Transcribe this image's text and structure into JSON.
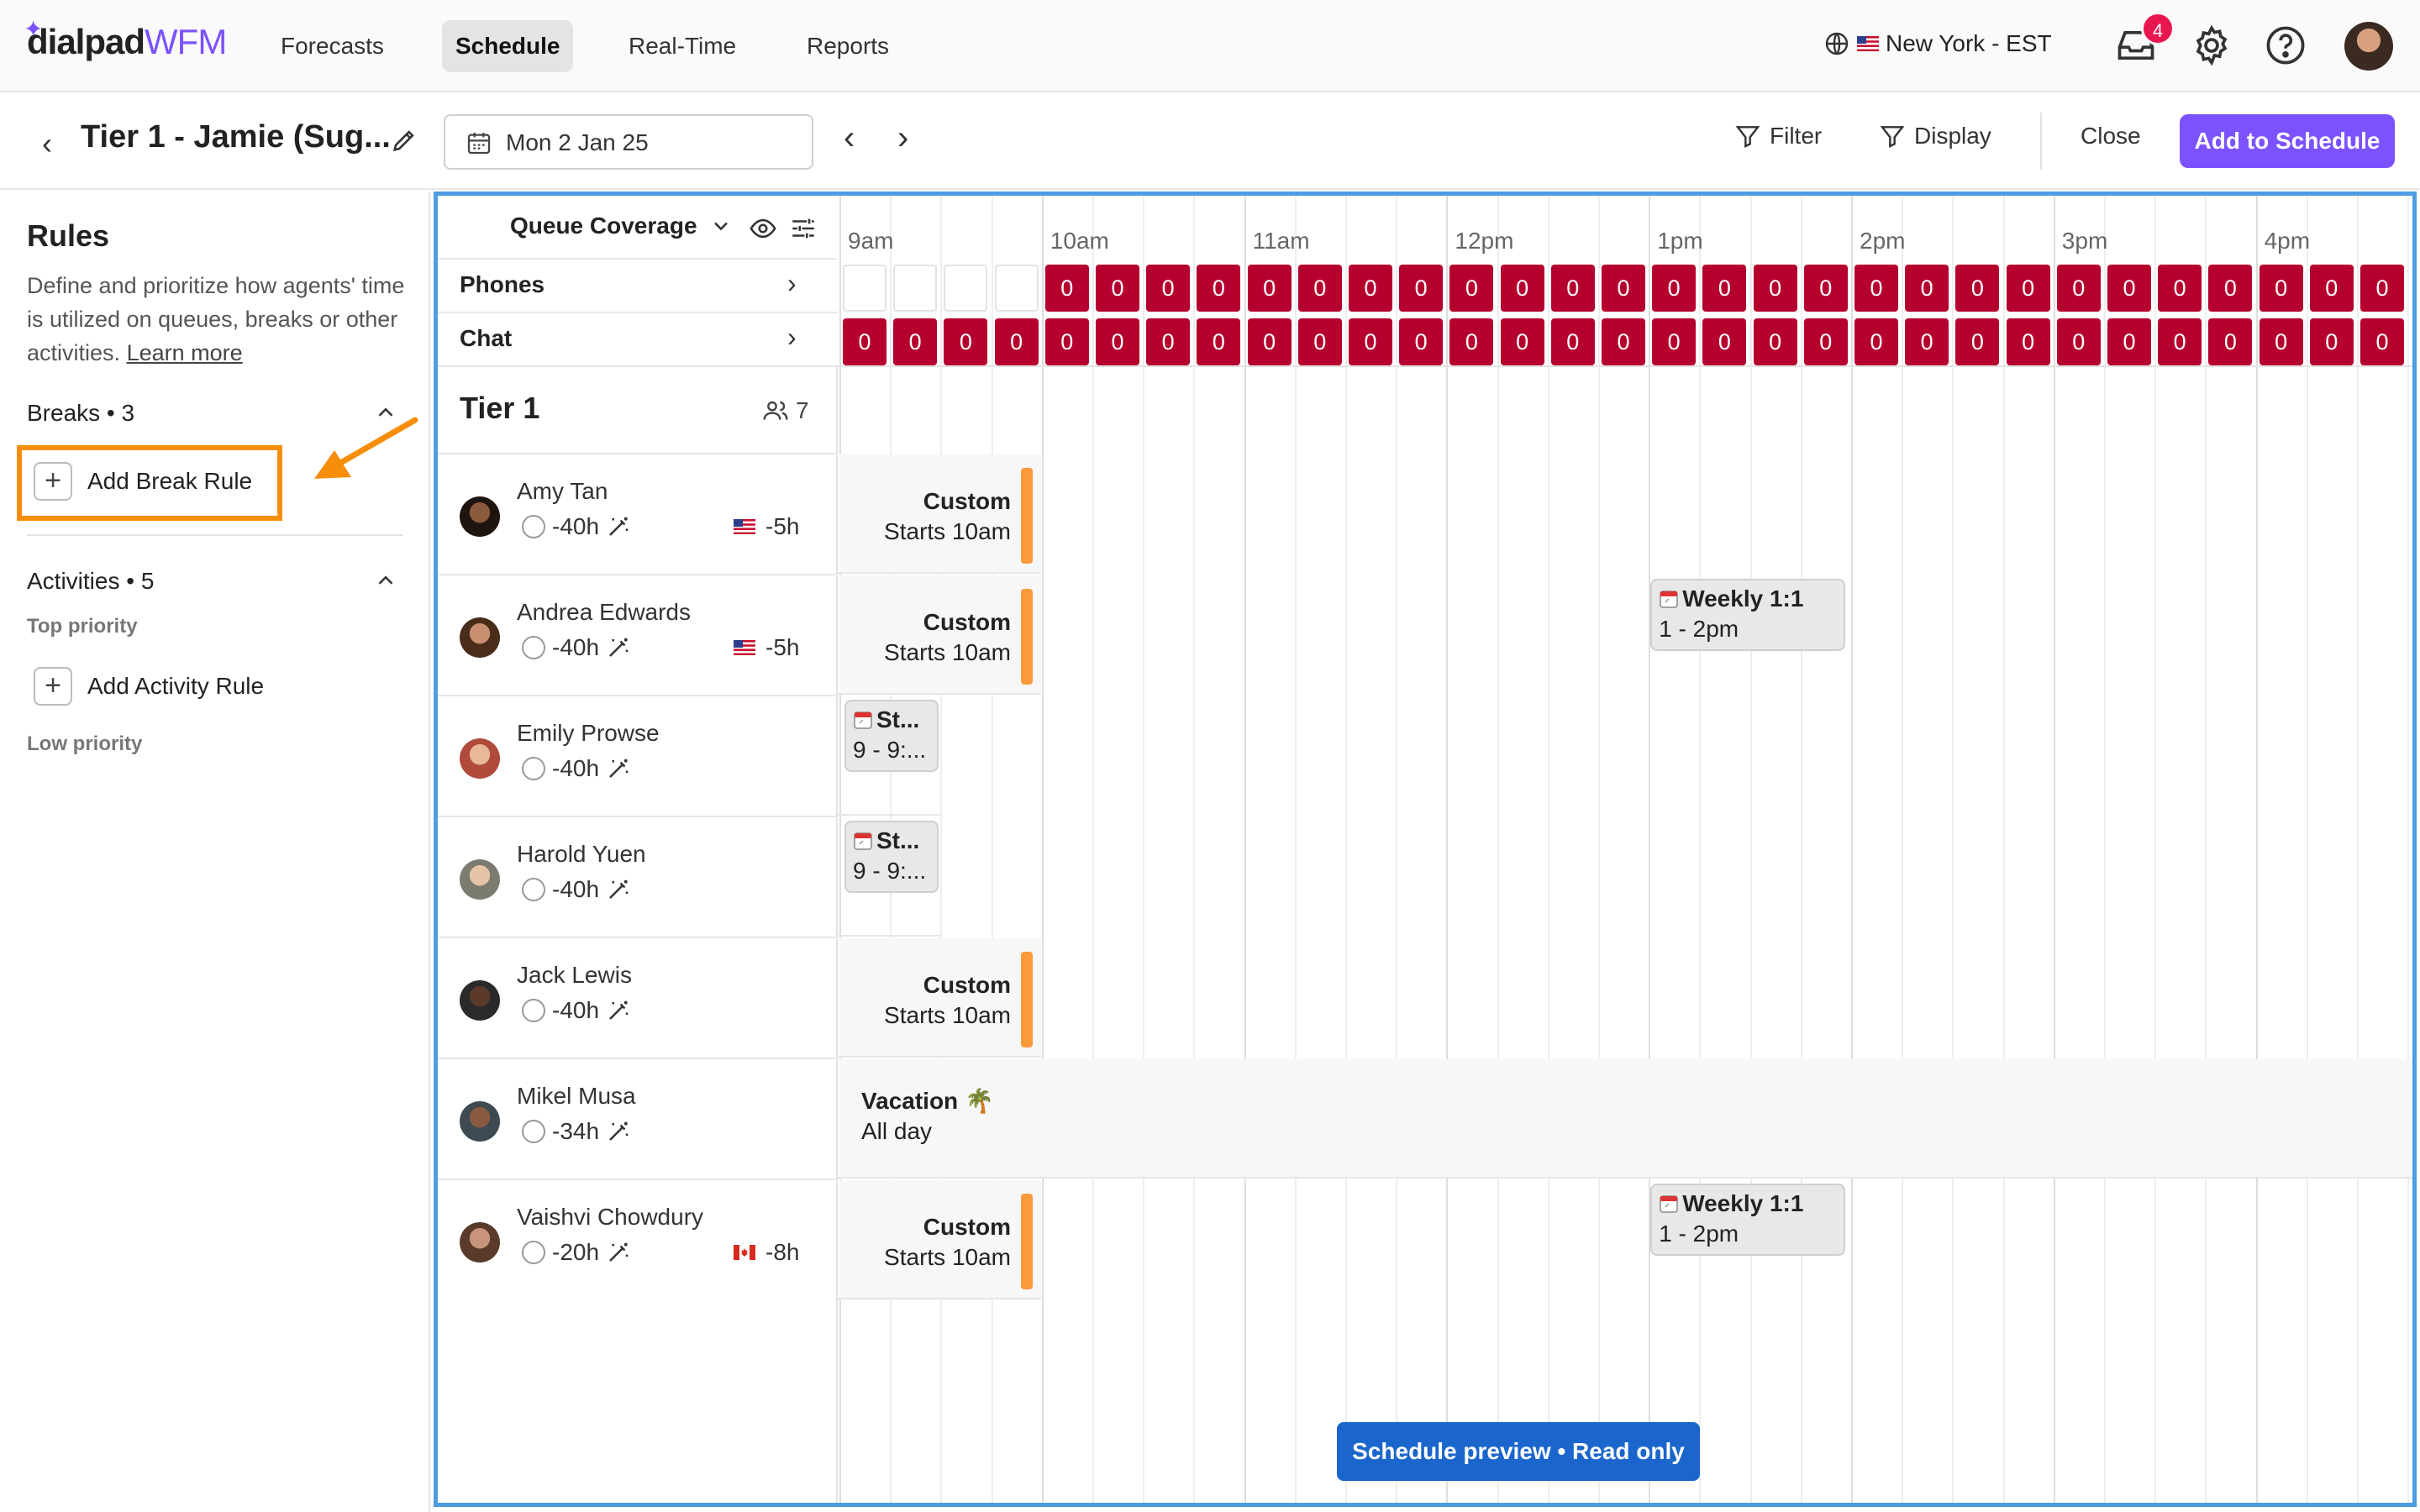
{
  "app": {
    "logo_main": "dialpad",
    "logo_accent": "WFM",
    "nav": [
      "Forecasts",
      "Schedule",
      "Real-Time",
      "Reports"
    ],
    "active_nav": "Schedule",
    "timezone": "New York - EST",
    "notifications_count": "4",
    "accent_color": "#7c52ff"
  },
  "subheader": {
    "title": "Tier 1 - Jamie (Sug...",
    "date": "Mon 2 Jan 25",
    "filter_label": "Filter",
    "display_label": "Display",
    "close_label": "Close",
    "add_label": "Add to Schedule"
  },
  "rules": {
    "heading": "Rules",
    "description": "Define and prioritize how agents' time is utilized on queues, breaks or other activities.",
    "learn_more": "Learn more",
    "breaks_label": "Breaks • 3",
    "add_break": "Add Break Rule",
    "activities_label": "Activities • 5",
    "top_priority": "Top priority",
    "add_activity": "Add Activity Rule",
    "low_priority": "Low priority",
    "highlight_color": "#f78e0a"
  },
  "schedule": {
    "queue_coverage_label": "Queue Coverage",
    "queues": [
      "Phones",
      "Chat"
    ],
    "hours": [
      "9am",
      "10am",
      "11am",
      "12pm",
      "1pm",
      "2pm",
      "3pm",
      "4pm"
    ],
    "coverage_value": "0",
    "coverage_color": "#b5002e",
    "team": "Tier 1",
    "team_count": "7",
    "agents": [
      {
        "name": "Amy Tan",
        "hours": "-40h",
        "offset": "-5h",
        "flag": "us"
      },
      {
        "name": "Andrea Edwards",
        "hours": "-40h",
        "offset": "-5h",
        "flag": "us"
      },
      {
        "name": "Emily Prowse",
        "hours": "-40h",
        "offset": "",
        "flag": ""
      },
      {
        "name": "Harold Yuen",
        "hours": "-40h",
        "offset": "",
        "flag": ""
      },
      {
        "name": "Jack Lewis",
        "hours": "-40h",
        "offset": "",
        "flag": ""
      },
      {
        "name": "Mikel Musa",
        "hours": "-34h",
        "offset": "",
        "flag": ""
      },
      {
        "name": "Vaishvi Chowdury",
        "hours": "-20h",
        "offset": "-8h",
        "flag": "ca"
      }
    ],
    "shift_title": "Custom",
    "shift_sub": "Starts 10am",
    "weekly_title": "Weekly 1:1",
    "weekly_time": "1 - 2pm",
    "st_title": "St...",
    "st_time": "9 - 9:...",
    "vacation_title": "Vacation 🌴",
    "vacation_sub": "All day",
    "preview_label": "Schedule preview • Read only",
    "shift_bar_color": "#fb9a3b"
  }
}
